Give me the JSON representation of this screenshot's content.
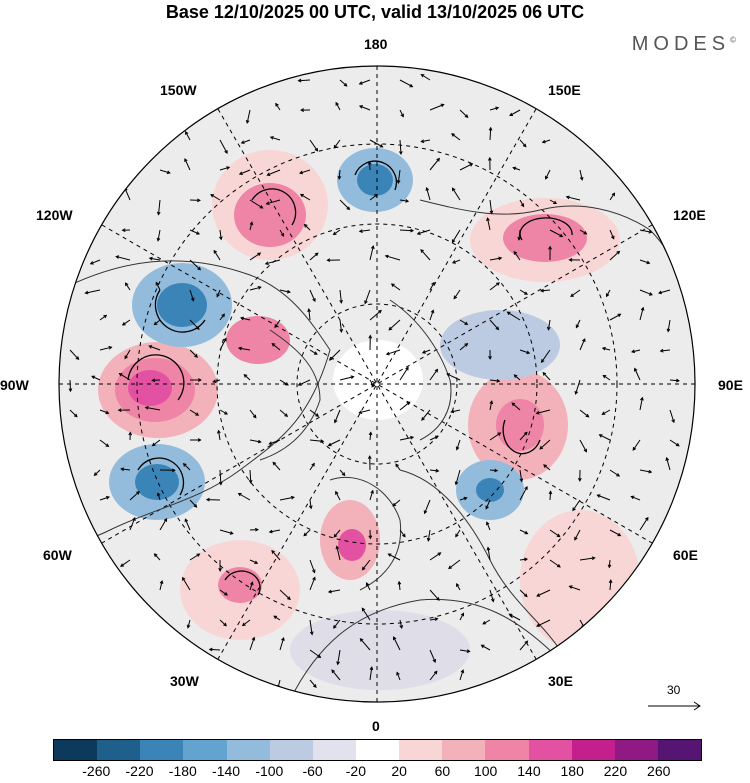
{
  "header": {
    "title": "Base 12/10/2025 00 UTC, valid 13/10/2025 06 UTC",
    "brand": "MODES"
  },
  "map": {
    "longitude_labels": {
      "top": "180",
      "bottom": "0",
      "upper_left": "150W",
      "upper_right": "150E",
      "left_upper": "120W",
      "right_upper": "120E",
      "left": "90W",
      "right": "90E",
      "left_lower": "60W",
      "right_lower": "60E",
      "lower_left": "30W",
      "lower_right": "30E"
    },
    "vector_scale_label": "30"
  },
  "colorbar": {
    "colors": [
      "#0c3a5c",
      "#1e5f8c",
      "#3a84b8",
      "#63a3cf",
      "#93bcdc",
      "#bccbe2",
      "#e2e2ef",
      "#ffffff",
      "#f9d6d6",
      "#f3b1ba",
      "#ee85a7",
      "#e352a2",
      "#c3208e",
      "#8f1a83",
      "#561573"
    ],
    "tick_labels": [
      "-260",
      "-220",
      "-180",
      "-140",
      "-100",
      "-60",
      "-20",
      "20",
      "60",
      "100",
      "140",
      "180",
      "220",
      "260"
    ]
  }
}
